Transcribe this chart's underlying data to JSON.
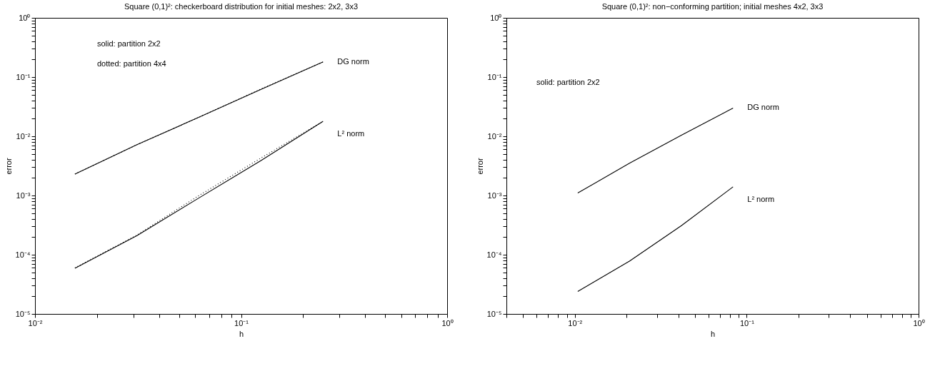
{
  "chart_data": [
    {
      "type": "line",
      "title": "Square (0,1)²: checkerboard distribution for initial  meshes: 2x2, 3x3",
      "xlabel": "h",
      "ylabel": "error",
      "log": "xy",
      "xlim": [
        0.01,
        1
      ],
      "ylim": [
        1e-05,
        1
      ],
      "xticks": [
        {
          "value": 0.01,
          "label": "10⁻²"
        },
        {
          "value": 0.02,
          "label": null
        },
        {
          "value": 0.03,
          "label": null
        },
        {
          "value": 0.04,
          "label": null
        },
        {
          "value": 0.05,
          "label": null
        },
        {
          "value": 0.06,
          "label": null
        },
        {
          "value": 0.07,
          "label": null
        },
        {
          "value": 0.08,
          "label": null
        },
        {
          "value": 0.09,
          "label": null
        },
        {
          "value": 0.1,
          "label": "10⁻¹"
        },
        {
          "value": 0.2,
          "label": null
        },
        {
          "value": 0.3,
          "label": null
        },
        {
          "value": 0.4,
          "label": null
        },
        {
          "value": 0.5,
          "label": null
        },
        {
          "value": 0.6,
          "label": null
        },
        {
          "value": 0.7,
          "label": null
        },
        {
          "value": 0.8,
          "label": null
        },
        {
          "value": 0.9,
          "label": null
        },
        {
          "value": 1,
          "label": "10⁰"
        }
      ],
      "yticks": [
        {
          "value": 1e-05,
          "label": "10⁻⁵"
        },
        {
          "value": 2e-05,
          "label": null
        },
        {
          "value": 3e-05,
          "label": null
        },
        {
          "value": 4e-05,
          "label": null
        },
        {
          "value": 5e-05,
          "label": null
        },
        {
          "value": 6e-05,
          "label": null
        },
        {
          "value": 7e-05,
          "label": null
        },
        {
          "value": 8e-05,
          "label": null
        },
        {
          "value": 9e-05,
          "label": null
        },
        {
          "value": 0.0001,
          "label": "10⁻⁴"
        },
        {
          "value": 0.0002,
          "label": null
        },
        {
          "value": 0.0003,
          "label": null
        },
        {
          "value": 0.0004,
          "label": null
        },
        {
          "value": 0.0005,
          "label": null
        },
        {
          "value": 0.0006,
          "label": null
        },
        {
          "value": 0.0007,
          "label": null
        },
        {
          "value": 0.0008,
          "label": null
        },
        {
          "value": 0.0009,
          "label": null
        },
        {
          "value": 0.001,
          "label": "10⁻³"
        },
        {
          "value": 0.002,
          "label": null
        },
        {
          "value": 0.003,
          "label": null
        },
        {
          "value": 0.004,
          "label": null
        },
        {
          "value": 0.005,
          "label": null
        },
        {
          "value": 0.006,
          "label": null
        },
        {
          "value": 0.007,
          "label": null
        },
        {
          "value": 0.008,
          "label": null
        },
        {
          "value": 0.009,
          "label": null
        },
        {
          "value": 0.01,
          "label": "10⁻²"
        },
        {
          "value": 0.02,
          "label": null
        },
        {
          "value": 0.03,
          "label": null
        },
        {
          "value": 0.04,
          "label": null
        },
        {
          "value": 0.05,
          "label": null
        },
        {
          "value": 0.06,
          "label": null
        },
        {
          "value": 0.07,
          "label": null
        },
        {
          "value": 0.08,
          "label": null
        },
        {
          "value": 0.09,
          "label": null
        },
        {
          "value": 0.1,
          "label": "10⁻¹"
        },
        {
          "value": 0.2,
          "label": null
        },
        {
          "value": 0.3,
          "label": null
        },
        {
          "value": 0.4,
          "label": null
        },
        {
          "value": 0.5,
          "label": null
        },
        {
          "value": 0.6,
          "label": null
        },
        {
          "value": 0.7,
          "label": null
        },
        {
          "value": 0.8,
          "label": null
        },
        {
          "value": 0.9,
          "label": null
        },
        {
          "value": 1,
          "label": "10⁰"
        }
      ],
      "x": [
        0.015625,
        0.03125,
        0.0625,
        0.125,
        0.25
      ],
      "series": [
        {
          "name": "DG norm",
          "color": "#000000",
          "line_style": "solid",
          "values": [
            0.0023,
            0.0072,
            0.021,
            0.062,
            0.18
          ]
        },
        {
          "color": "#000000",
          "line_style": "dotted",
          "values": [
            0.0023,
            0.0072,
            0.021,
            0.063,
            0.18
          ]
        },
        {
          "name": "L² norm",
          "color": "#000000",
          "line_style": "solid",
          "values": [
            5.9e-05,
            0.00021,
            0.00091,
            0.0039,
            0.0179
          ]
        },
        {
          "color": "#000000",
          "line_style": "dotted",
          "values": [
            6e-05,
            0.000215,
            0.001,
            0.0043,
            0.0179
          ]
        }
      ],
      "annotations": [
        "solid: partition 2x2",
        "dotted: partition 4x4"
      ]
    },
    {
      "type": "line",
      "title": "Square (0,1)²: non−conforming partition; initial  meshes 4x2, 3x3",
      "xlabel": "h",
      "ylabel": "error",
      "log": "xy",
      "xlim": [
        0.004,
        1
      ],
      "ylim": [
        1e-05,
        1
      ],
      "xticks": [
        {
          "value": 0.004,
          "label": null
        },
        {
          "value": 0.005,
          "label": null
        },
        {
          "value": 0.006,
          "label": null
        },
        {
          "value": 0.007,
          "label": null
        },
        {
          "value": 0.008,
          "label": null
        },
        {
          "value": 0.009,
          "label": null
        },
        {
          "value": 0.01,
          "label": "10⁻²"
        },
        {
          "value": 0.02,
          "label": null
        },
        {
          "value": 0.03,
          "label": null
        },
        {
          "value": 0.04,
          "label": null
        },
        {
          "value": 0.05,
          "label": null
        },
        {
          "value": 0.06,
          "label": null
        },
        {
          "value": 0.07,
          "label": null
        },
        {
          "value": 0.08,
          "label": null
        },
        {
          "value": 0.09,
          "label": null
        },
        {
          "value": 0.1,
          "label": "10⁻¹"
        },
        {
          "value": 0.2,
          "label": null
        },
        {
          "value": 0.3,
          "label": null
        },
        {
          "value": 0.4,
          "label": null
        },
        {
          "value": 0.5,
          "label": null
        },
        {
          "value": 0.6,
          "label": null
        },
        {
          "value": 0.7,
          "label": null
        },
        {
          "value": 0.8,
          "label": null
        },
        {
          "value": 0.9,
          "label": null
        },
        {
          "value": 1,
          "label": "10⁰"
        }
      ],
      "yticks": [
        {
          "value": 1e-05,
          "label": "10⁻⁵"
        },
        {
          "value": 2e-05,
          "label": null
        },
        {
          "value": 3e-05,
          "label": null
        },
        {
          "value": 4e-05,
          "label": null
        },
        {
          "value": 5e-05,
          "label": null
        },
        {
          "value": 6e-05,
          "label": null
        },
        {
          "value": 7e-05,
          "label": null
        },
        {
          "value": 8e-05,
          "label": null
        },
        {
          "value": 9e-05,
          "label": null
        },
        {
          "value": 0.0001,
          "label": "10⁻⁴"
        },
        {
          "value": 0.0002,
          "label": null
        },
        {
          "value": 0.0003,
          "label": null
        },
        {
          "value": 0.0004,
          "label": null
        },
        {
          "value": 0.0005,
          "label": null
        },
        {
          "value": 0.0006,
          "label": null
        },
        {
          "value": 0.0007,
          "label": null
        },
        {
          "value": 0.0008,
          "label": null
        },
        {
          "value": 0.0009,
          "label": null
        },
        {
          "value": 0.001,
          "label": "10⁻³"
        },
        {
          "value": 0.002,
          "label": null
        },
        {
          "value": 0.003,
          "label": null
        },
        {
          "value": 0.004,
          "label": null
        },
        {
          "value": 0.005,
          "label": null
        },
        {
          "value": 0.006,
          "label": null
        },
        {
          "value": 0.007,
          "label": null
        },
        {
          "value": 0.008,
          "label": null
        },
        {
          "value": 0.009,
          "label": null
        },
        {
          "value": 0.01,
          "label": "10⁻²"
        },
        {
          "value": 0.02,
          "label": null
        },
        {
          "value": 0.03,
          "label": null
        },
        {
          "value": 0.04,
          "label": null
        },
        {
          "value": 0.05,
          "label": null
        },
        {
          "value": 0.06,
          "label": null
        },
        {
          "value": 0.07,
          "label": null
        },
        {
          "value": 0.08,
          "label": null
        },
        {
          "value": 0.09,
          "label": null
        },
        {
          "value": 0.1,
          "label": "10⁻¹"
        },
        {
          "value": 0.2,
          "label": null
        },
        {
          "value": 0.3,
          "label": null
        },
        {
          "value": 0.4,
          "label": null
        },
        {
          "value": 0.5,
          "label": null
        },
        {
          "value": 0.6,
          "label": null
        },
        {
          "value": 0.7,
          "label": null
        },
        {
          "value": 0.8,
          "label": null
        },
        {
          "value": 0.9,
          "label": null
        },
        {
          "value": 1,
          "label": "10⁰"
        }
      ],
      "x": [
        0.0104,
        0.0208,
        0.0417,
        0.0833
      ],
      "series": [
        {
          "name": "DG norm",
          "color": "#000000",
          "line_style": "solid",
          "values": [
            0.0011,
            0.0035,
            0.0104,
            0.03
          ]
        },
        {
          "name": "L² norm",
          "color": "#000000",
          "line_style": "solid",
          "values": [
            2.4e-05,
            7.8e-05,
            0.00031,
            0.0014
          ]
        }
      ],
      "annotations": [
        "solid: partition 2x2"
      ]
    }
  ]
}
